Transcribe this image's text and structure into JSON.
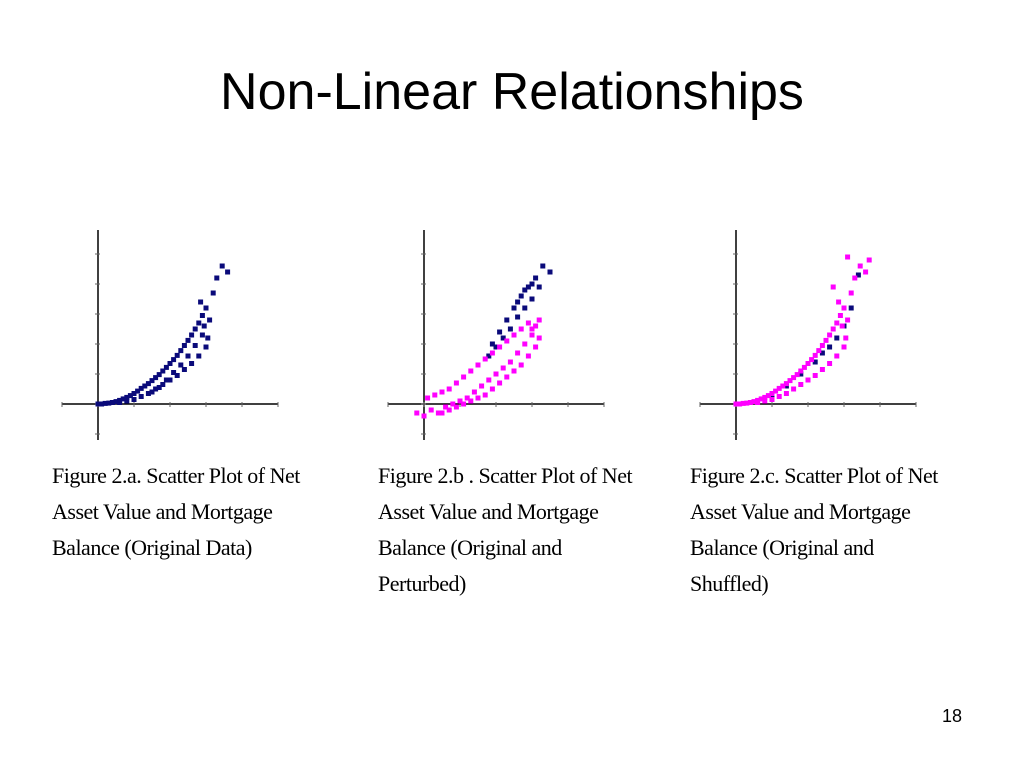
{
  "slide": {
    "title": "Non-Linear Relationships",
    "page_number": "18"
  },
  "colors": {
    "original": "#0a0a7a",
    "modified": "#ff00ff",
    "axis": "#000000"
  },
  "chart_data": [
    {
      "type": "scatter",
      "caption_lines": [
        "Figure 2.a. Scatter Plot of Net",
        "Asset Value and Mortgage",
        "Balance (Original Data)"
      ],
      "xlabel": "",
      "ylabel": "",
      "grid": false,
      "series": [
        {
          "color": "#0a0a7a",
          "points": [
            [
              0.0,
              0.0
            ],
            [
              0.1,
              0.0
            ],
            [
              0.2,
              0.02
            ],
            [
              0.3,
              0.03
            ],
            [
              0.4,
              0.05
            ],
            [
              0.5,
              0.08
            ],
            [
              0.6,
              0.12
            ],
            [
              0.7,
              0.17
            ],
            [
              0.8,
              0.22
            ],
            [
              0.9,
              0.28
            ],
            [
              1.0,
              0.35
            ],
            [
              1.1,
              0.43
            ],
            [
              1.2,
              0.52
            ],
            [
              1.3,
              0.6
            ],
            [
              1.4,
              0.68
            ],
            [
              1.5,
              0.78
            ],
            [
              1.6,
              0.88
            ],
            [
              1.7,
              0.98
            ],
            [
              1.8,
              1.1
            ],
            [
              1.9,
              1.22
            ],
            [
              2.0,
              1.35
            ],
            [
              2.1,
              1.48
            ],
            [
              2.2,
              1.62
            ],
            [
              2.3,
              1.78
            ],
            [
              2.4,
              1.95
            ],
            [
              2.5,
              2.12
            ],
            [
              2.6,
              2.3
            ],
            [
              2.7,
              2.5
            ],
            [
              2.8,
              2.7
            ],
            [
              2.9,
              2.95
            ],
            [
              0.6,
              0.05
            ],
            [
              0.8,
              0.1
            ],
            [
              1.0,
              0.15
            ],
            [
              1.2,
              0.25
            ],
            [
              1.4,
              0.35
            ],
            [
              1.6,
              0.5
            ],
            [
              1.8,
              0.65
            ],
            [
              2.0,
              0.8
            ],
            [
              2.2,
              0.95
            ],
            [
              2.4,
              1.15
            ],
            [
              2.6,
              1.35
            ],
            [
              2.8,
              1.6
            ],
            [
              3.0,
              1.9
            ],
            [
              3.05,
              2.2
            ],
            [
              2.95,
              2.6
            ],
            [
              3.1,
              2.8
            ],
            [
              3.0,
              3.2
            ],
            [
              2.85,
              3.4
            ],
            [
              3.2,
              3.7
            ],
            [
              3.45,
              4.6
            ],
            [
              3.6,
              4.4
            ],
            [
              3.3,
              4.2
            ],
            [
              1.5,
              0.4
            ],
            [
              1.7,
              0.55
            ],
            [
              1.9,
              0.8
            ],
            [
              2.1,
              1.05
            ],
            [
              2.3,
              1.3
            ],
            [
              2.5,
              1.6
            ],
            [
              2.7,
              1.95
            ],
            [
              2.9,
              2.3
            ]
          ]
        }
      ]
    },
    {
      "type": "scatter",
      "caption_lines": [
        "Figure 2.b . Scatter Plot of Net",
        "Asset Value and Mortgage",
        "Balance (Original and",
        "Perturbed)"
      ],
      "xlabel": "",
      "ylabel": "",
      "grid": false,
      "series": [
        {
          "color": "#0a0a7a",
          "points": [
            [
              1.8,
              1.6
            ],
            [
              2.0,
              1.9
            ],
            [
              2.2,
              2.2
            ],
            [
              2.4,
              2.5
            ],
            [
              2.6,
              2.9
            ],
            [
              2.8,
              3.2
            ],
            [
              3.0,
              3.5
            ],
            [
              2.3,
              2.8
            ],
            [
              2.5,
              3.2
            ],
            [
              2.7,
              3.6
            ],
            [
              2.9,
              3.9
            ],
            [
              3.1,
              4.2
            ],
            [
              3.3,
              4.6
            ],
            [
              3.5,
              4.4
            ],
            [
              2.1,
              2.4
            ],
            [
              1.9,
              2.0
            ],
            [
              2.6,
              3.4
            ],
            [
              2.8,
              3.8
            ],
            [
              3.0,
              4.0
            ],
            [
              3.2,
              3.9
            ]
          ]
        },
        {
          "color": "#ff00ff",
          "points": [
            [
              -0.2,
              -0.3
            ],
            [
              0.0,
              -0.4
            ],
            [
              0.2,
              -0.2
            ],
            [
              0.4,
              -0.3
            ],
            [
              0.6,
              -0.1
            ],
            [
              0.8,
              0.0
            ],
            [
              1.0,
              0.1
            ],
            [
              1.2,
              0.2
            ],
            [
              1.4,
              0.4
            ],
            [
              1.6,
              0.6
            ],
            [
              1.8,
              0.8
            ],
            [
              2.0,
              1.0
            ],
            [
              2.2,
              1.2
            ],
            [
              2.4,
              1.4
            ],
            [
              2.6,
              1.7
            ],
            [
              2.8,
              2.0
            ],
            [
              3.0,
              2.3
            ],
            [
              3.1,
              2.6
            ],
            [
              3.2,
              2.8
            ],
            [
              0.1,
              0.2
            ],
            [
              0.3,
              0.3
            ],
            [
              0.5,
              0.4
            ],
            [
              0.7,
              0.5
            ],
            [
              0.9,
              0.7
            ],
            [
              1.1,
              0.9
            ],
            [
              1.3,
              1.1
            ],
            [
              1.5,
              1.3
            ],
            [
              1.7,
              1.5
            ],
            [
              1.9,
              1.7
            ],
            [
              2.1,
              1.9
            ],
            [
              2.3,
              2.1
            ],
            [
              2.5,
              2.3
            ],
            [
              2.7,
              2.5
            ],
            [
              2.9,
              2.7
            ],
            [
              3.0,
              2.5
            ],
            [
              0.5,
              -0.3
            ],
            [
              0.7,
              -0.2
            ],
            [
              0.9,
              -0.1
            ],
            [
              1.1,
              0.0
            ],
            [
              1.3,
              0.1
            ],
            [
              1.5,
              0.2
            ],
            [
              1.7,
              0.3
            ],
            [
              1.9,
              0.5
            ],
            [
              2.1,
              0.7
            ],
            [
              2.3,
              0.9
            ],
            [
              2.5,
              1.1
            ],
            [
              2.7,
              1.3
            ],
            [
              2.9,
              1.6
            ],
            [
              3.1,
              1.9
            ],
            [
              3.2,
              2.2
            ]
          ]
        }
      ]
    },
    {
      "type": "scatter",
      "caption_lines": [
        "Figure 2.c. Scatter Plot of Net",
        "Asset Value and Mortgage",
        "Balance (Original and",
        "Shuffled)"
      ],
      "xlabel": "",
      "ylabel": "",
      "grid": false,
      "series": [
        {
          "color": "#0a0a7a",
          "points": [
            [
              1.0,
              0.3
            ],
            [
              1.4,
              0.6
            ],
            [
              1.8,
              1.0
            ],
            [
              2.2,
              1.4
            ],
            [
              2.6,
              1.9
            ],
            [
              3.0,
              2.6
            ],
            [
              3.2,
              3.2
            ],
            [
              3.4,
              4.3
            ],
            [
              2.8,
              2.2
            ],
            [
              2.4,
              1.7
            ]
          ]
        },
        {
          "color": "#ff00ff",
          "points": [
            [
              0.0,
              0.0
            ],
            [
              0.1,
              0.0
            ],
            [
              0.2,
              0.02
            ],
            [
              0.3,
              0.03
            ],
            [
              0.4,
              0.05
            ],
            [
              0.5,
              0.08
            ],
            [
              0.6,
              0.12
            ],
            [
              0.7,
              0.17
            ],
            [
              0.8,
              0.22
            ],
            [
              0.9,
              0.28
            ],
            [
              1.0,
              0.35
            ],
            [
              1.1,
              0.43
            ],
            [
              1.2,
              0.52
            ],
            [
              1.3,
              0.6
            ],
            [
              1.4,
              0.68
            ],
            [
              1.5,
              0.78
            ],
            [
              1.6,
              0.88
            ],
            [
              1.7,
              0.98
            ],
            [
              1.8,
              1.1
            ],
            [
              1.9,
              1.22
            ],
            [
              2.0,
              1.35
            ],
            [
              2.1,
              1.48
            ],
            [
              2.2,
              1.62
            ],
            [
              2.3,
              1.78
            ],
            [
              2.4,
              1.95
            ],
            [
              2.5,
              2.12
            ],
            [
              2.6,
              2.3
            ],
            [
              2.7,
              2.5
            ],
            [
              2.8,
              2.7
            ],
            [
              2.9,
              2.95
            ],
            [
              0.6,
              0.05
            ],
            [
              0.8,
              0.1
            ],
            [
              1.0,
              0.15
            ],
            [
              1.2,
              0.25
            ],
            [
              1.4,
              0.35
            ],
            [
              1.6,
              0.5
            ],
            [
              1.8,
              0.65
            ],
            [
              2.0,
              0.8
            ],
            [
              2.2,
              0.95
            ],
            [
              2.4,
              1.15
            ],
            [
              2.6,
              1.35
            ],
            [
              2.8,
              1.6
            ],
            [
              3.0,
              1.9
            ],
            [
              3.05,
              2.2
            ],
            [
              2.95,
              2.6
            ],
            [
              3.1,
              2.8
            ],
            [
              3.0,
              3.2
            ],
            [
              2.85,
              3.4
            ],
            [
              3.2,
              3.7
            ],
            [
              3.45,
              4.6
            ],
            [
              3.6,
              4.4
            ],
            [
              3.3,
              4.2
            ],
            [
              3.7,
              4.8
            ],
            [
              3.1,
              4.9
            ],
            [
              2.7,
              3.9
            ]
          ]
        }
      ]
    }
  ]
}
